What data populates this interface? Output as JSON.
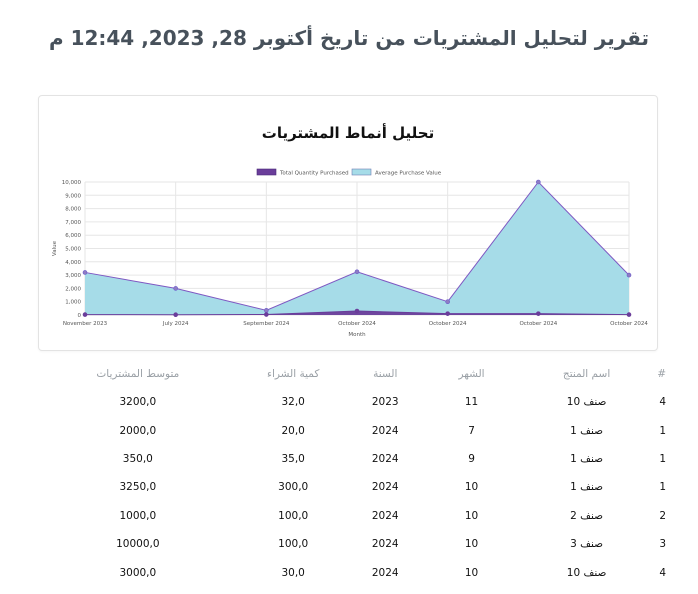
{
  "report_title": "تقرير لتحليل المشتريات من تاريخ أكتوبر 28, 2023, 12:44 م",
  "chart_data": {
    "type": "area",
    "title": "تحليل أنماط المشتريات",
    "categories": [
      "November 2023",
      "July 2024",
      "September 2024",
      "October 2024",
      "October 2024",
      "October 2024",
      "October 2024"
    ],
    "series": [
      {
        "name": "Total Quantity Purchased",
        "values": [
          32,
          20,
          35,
          300,
          100,
          100,
          30
        ],
        "color": "#6a3d9a"
      },
      {
        "name": "Average Purchase Value",
        "values": [
          3200,
          2000,
          350,
          3250,
          1000,
          10000,
          3000
        ],
        "color": "#a6dce8",
        "stroke": "#7e57c2"
      }
    ],
    "xlabel": "Month",
    "ylabel": "Value",
    "ylim": [
      0,
      10000
    ],
    "yticks": [
      0,
      1000,
      2000,
      3000,
      4000,
      5000,
      6000,
      7000,
      8000,
      9000,
      10000
    ],
    "ytick_labels": [
      "0",
      "1,000",
      "2,000",
      "3,000",
      "4,000",
      "5,000",
      "6,000",
      "7,000",
      "8,000",
      "9,000",
      "10,000"
    ],
    "grid": true,
    "legend": "top"
  },
  "table": {
    "headers": {
      "index": "#",
      "product": "اسم المنتج",
      "month": "الشهر",
      "year": "السنة",
      "quantity": "كمية الشراء",
      "avg": "متوسط المشتريات"
    },
    "rows": [
      {
        "index": "4",
        "product": "صنف 10",
        "month": "11",
        "year": "2023",
        "quantity": "32,0",
        "avg": "3200,0"
      },
      {
        "index": "1",
        "product": "صنف 1",
        "month": "7",
        "year": "2024",
        "quantity": "20,0",
        "avg": "2000,0"
      },
      {
        "index": "1",
        "product": "صنف 1",
        "month": "9",
        "year": "2024",
        "quantity": "35,0",
        "avg": "350,0"
      },
      {
        "index": "1",
        "product": "صنف 1",
        "month": "10",
        "year": "2024",
        "quantity": "300,0",
        "avg": "3250,0"
      },
      {
        "index": "2",
        "product": "صنف 2",
        "month": "10",
        "year": "2024",
        "quantity": "100,0",
        "avg": "1000,0"
      },
      {
        "index": "3",
        "product": "صنف 3",
        "month": "10",
        "year": "2024",
        "quantity": "100,0",
        "avg": "10000,0"
      },
      {
        "index": "4",
        "product": "صنف 10",
        "month": "10",
        "year": "2024",
        "quantity": "30,0",
        "avg": "3000,0"
      }
    ]
  }
}
